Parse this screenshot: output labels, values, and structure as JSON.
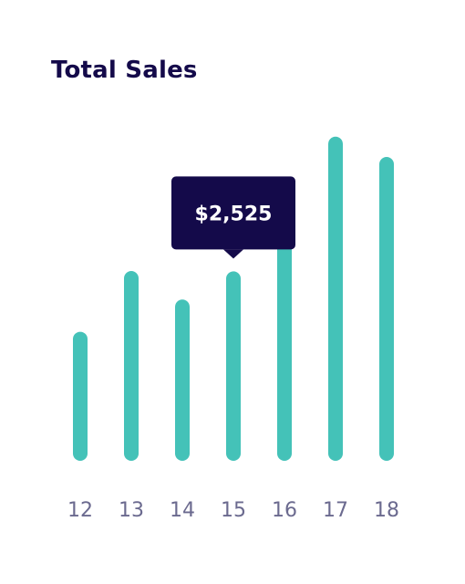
{
  "title": "Total Sales",
  "colors": {
    "bar": "#44c2b8",
    "title": "#140a4a",
    "tooltip_bg": "#140a4a",
    "tooltip_text": "#ffffff",
    "tick": "#6b6a8f"
  },
  "chart_data": {
    "type": "bar",
    "title": "Total Sales",
    "xlabel": "",
    "ylabel": "",
    "categories": [
      "12",
      "13",
      "14",
      "15",
      "16",
      "17",
      "18"
    ],
    "values": [
      1720,
      2530,
      2150,
      2525,
      3200,
      4320,
      4050
    ],
    "ylim": [
      0,
      4500
    ],
    "grid": false,
    "tooltip": {
      "category": "15",
      "label": "$2,525"
    }
  }
}
